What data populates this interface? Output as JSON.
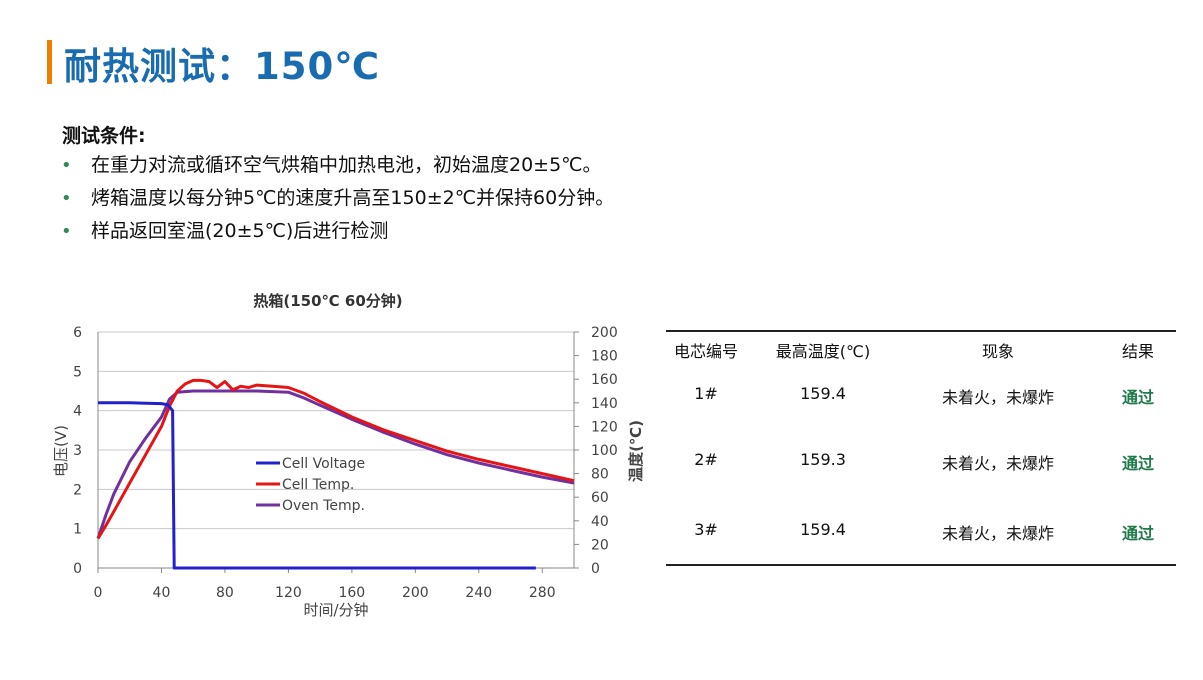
{
  "page": {
    "title": "耐热测试：150℃",
    "conditions_heading": "测试条件:",
    "bullets": [
      "在重力对流或循环空气烘箱中加热电池，初始温度20±5℃。",
      "烤箱温度以每分钟5℃的速度升高至150±2℃并保持60分钟。",
      "样品返回室温(20±5℃)后进行检测"
    ],
    "bullet_symbol": "•",
    "accent_color": "#ef7d00",
    "title_color": "#1a6cb0"
  },
  "chart_data": {
    "type": "line",
    "title": "热箱(150℃ 60分钟)",
    "xlabel": "时间/分钟",
    "ylabel": "电压(V)",
    "y2label": "温度(℃)",
    "xlim": [
      0,
      300
    ],
    "ylim": [
      0,
      6
    ],
    "y2lim": [
      0,
      200
    ],
    "xticks": [
      0,
      40,
      80,
      120,
      160,
      200,
      240,
      280
    ],
    "yticks": [
      0,
      1,
      2,
      3,
      4,
      5,
      6
    ],
    "y2ticks": [
      0,
      20,
      40,
      60,
      80,
      100,
      120,
      140,
      160,
      180,
      200
    ],
    "grid": true,
    "legend_position": "center-left",
    "series": [
      {
        "name": "Cell Voltage",
        "axis": "left",
        "color": "#2222cc",
        "x": [
          0,
          10,
          20,
          30,
          40,
          44,
          46,
          47,
          47.5,
          48,
          60,
          100,
          150,
          200,
          250,
          276
        ],
        "y": [
          4.2,
          4.2,
          4.2,
          4.19,
          4.18,
          4.15,
          4.05,
          4.0,
          2.0,
          0,
          0,
          0,
          0,
          0,
          0,
          0
        ]
      },
      {
        "name": "Cell Temp.",
        "axis": "right",
        "color": "#e61414",
        "x": [
          0,
          5,
          10,
          20,
          30,
          40,
          45,
          50,
          55,
          60,
          65,
          70,
          75,
          80,
          85,
          90,
          95,
          100,
          110,
          120,
          130,
          140,
          160,
          180,
          200,
          220,
          240,
          260,
          280,
          300
        ],
        "y": [
          25,
          36,
          48,
          72,
          96,
          120,
          137,
          150,
          156,
          159,
          159,
          158,
          153,
          158,
          151,
          154,
          153,
          155,
          154,
          153,
          148,
          141,
          128,
          117,
          108,
          99,
          92,
          86,
          80,
          74
        ]
      },
      {
        "name": "Oven Temp.",
        "axis": "right",
        "color": "#7030a0",
        "x": [
          0,
          5,
          10,
          20,
          30,
          40,
          45,
          50,
          60,
          80,
          100,
          120,
          130,
          140,
          160,
          180,
          200,
          220,
          240,
          260,
          280,
          300
        ],
        "y": [
          25,
          45,
          63,
          90,
          110,
          128,
          143,
          149,
          150,
          150,
          150,
          149,
          144,
          138,
          126,
          115,
          105,
          96,
          89,
          83,
          77,
          72
        ]
      }
    ]
  },
  "table": {
    "headers": [
      "电芯编号",
      "最高温度(℃)",
      "现象",
      "结果"
    ],
    "rows": [
      [
        "1#",
        "159.4",
        "未着火，未爆炸",
        "通过"
      ],
      [
        "2#",
        "159.3",
        "未着火，未爆炸",
        "通过"
      ],
      [
        "3#",
        "159.4",
        "未着火，未爆炸",
        "通过"
      ]
    ],
    "pass_color": "#1f7a4a"
  }
}
